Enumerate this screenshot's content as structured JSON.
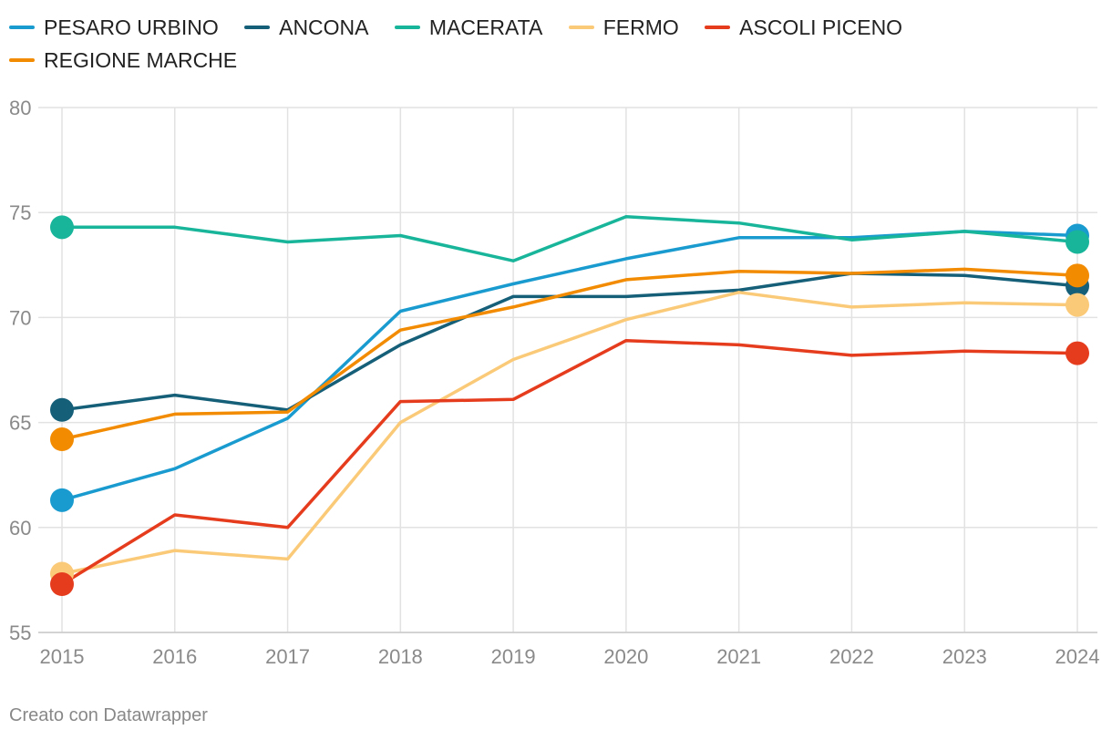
{
  "chart_data": {
    "type": "line",
    "title": "",
    "xlabel": "",
    "ylabel": "",
    "x": [
      "2015",
      "2016",
      "2017",
      "2018",
      "2019",
      "2020",
      "2021",
      "2022",
      "2023",
      "2024"
    ],
    "yticks": [
      "55",
      "60",
      "65",
      "70",
      "75",
      "80"
    ],
    "ylim": [
      55,
      80
    ],
    "grid": true,
    "series": [
      {
        "name": "PESARO URBINO",
        "color": "#1a9bcf",
        "values": [
          61.3,
          62.8,
          65.2,
          70.3,
          71.6,
          72.8,
          73.8,
          73.8,
          74.1,
          73.9
        ]
      },
      {
        "name": "ANCONA",
        "color": "#155f79",
        "values": [
          65.6,
          66.3,
          65.6,
          68.7,
          71.0,
          71.0,
          71.3,
          72.1,
          72.0,
          71.5
        ]
      },
      {
        "name": "MACERATA",
        "color": "#18b59a",
        "values": [
          74.3,
          74.3,
          73.6,
          73.9,
          72.7,
          74.8,
          74.5,
          73.7,
          74.1,
          73.6
        ]
      },
      {
        "name": "FERMO",
        "color": "#fbca78",
        "values": [
          57.8,
          58.9,
          58.5,
          65.0,
          68.0,
          69.9,
          71.2,
          70.5,
          70.7,
          70.6
        ]
      },
      {
        "name": "ASCOLI PICENO",
        "color": "#e63c1e",
        "values": [
          57.3,
          60.6,
          60.0,
          66.0,
          66.1,
          68.9,
          68.7,
          68.2,
          68.4,
          68.3
        ]
      },
      {
        "name": "REGIONE MARCHE",
        "color": "#f28b00",
        "values": [
          64.2,
          65.4,
          65.5,
          69.4,
          70.5,
          71.8,
          72.2,
          72.1,
          72.3,
          72.0
        ]
      }
    ]
  },
  "footer": {
    "credit": "Creato con Datawrapper"
  }
}
